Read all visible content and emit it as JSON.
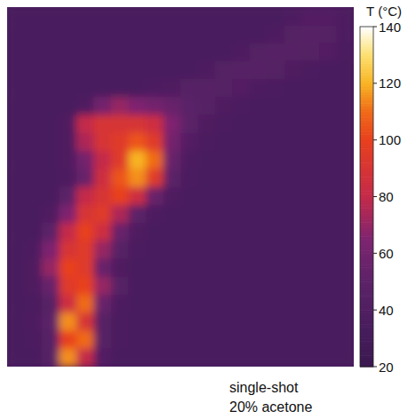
{
  "chart_data": {
    "type": "heatmap",
    "tick_labels": false,
    "colorbar_label": "T (°C)",
    "colorbar_range": [
      20,
      140
    ],
    "colorbar_ticks": [
      20,
      40,
      60,
      80,
      100,
      120,
      140
    ],
    "annotations": [
      "single-shot",
      "20% acetone"
    ],
    "cells": [
      [
        35,
        35,
        35,
        35,
        35,
        35,
        35,
        35,
        35,
        35,
        35,
        35,
        35,
        35,
        35,
        35,
        38,
        42,
        42,
        38
      ],
      [
        35,
        35,
        35,
        35,
        35,
        35,
        35,
        35,
        35,
        35,
        35,
        35,
        35,
        35,
        35,
        38,
        44,
        45,
        44,
        38
      ],
      [
        35,
        35,
        35,
        35,
        35,
        35,
        35,
        35,
        35,
        35,
        35,
        35,
        35,
        38,
        44,
        46,
        45,
        44,
        42,
        36
      ],
      [
        35,
        35,
        35,
        35,
        35,
        35,
        35,
        35,
        35,
        35,
        35,
        38,
        44,
        45,
        45,
        43,
        40,
        36,
        35,
        35
      ],
      [
        35,
        35,
        35,
        35,
        35,
        35,
        35,
        35,
        38,
        40,
        45,
        45,
        44,
        42,
        38,
        36,
        35,
        35,
        35,
        35
      ],
      [
        35,
        35,
        35,
        35,
        40,
        60,
        70,
        65,
        60,
        55,
        48,
        45,
        40,
        36,
        35,
        35,
        35,
        35,
        35,
        35
      ],
      [
        35,
        35,
        35,
        40,
        80,
        90,
        90,
        90,
        85,
        65,
        50,
        40,
        36,
        35,
        35,
        35,
        35,
        35,
        35,
        35
      ],
      [
        35,
        35,
        35,
        40,
        75,
        90,
        95,
        105,
        95,
        60,
        42,
        36,
        35,
        35,
        35,
        35,
        35,
        35,
        35,
        35
      ],
      [
        35,
        35,
        35,
        40,
        60,
        80,
        95,
        120,
        110,
        55,
        38,
        35,
        35,
        35,
        35,
        35,
        35,
        35,
        35,
        35
      ],
      [
        35,
        35,
        35,
        38,
        55,
        85,
        105,
        115,
        95,
        50,
        37,
        35,
        35,
        35,
        35,
        35,
        35,
        35,
        35,
        35
      ],
      [
        35,
        35,
        35,
        50,
        80,
        90,
        100,
        85,
        55,
        40,
        35,
        35,
        35,
        35,
        35,
        35,
        35,
        35,
        35,
        35
      ],
      [
        35,
        35,
        40,
        65,
        90,
        95,
        75,
        50,
        38,
        35,
        35,
        35,
        35,
        35,
        35,
        35,
        35,
        35,
        35,
        35
      ],
      [
        35,
        35,
        50,
        80,
        100,
        85,
        55,
        40,
        35,
        35,
        35,
        35,
        35,
        35,
        35,
        35,
        35,
        35,
        35,
        35
      ],
      [
        35,
        38,
        65,
        90,
        95,
        70,
        45,
        36,
        35,
        35,
        35,
        35,
        35,
        35,
        35,
        35,
        35,
        35,
        35,
        35
      ],
      [
        35,
        40,
        70,
        100,
        95,
        55,
        40,
        35,
        35,
        35,
        35,
        35,
        35,
        35,
        35,
        35,
        35,
        35,
        35,
        35
      ],
      [
        35,
        40,
        55,
        95,
        100,
        70,
        45,
        35,
        35,
        35,
        35,
        35,
        35,
        35,
        35,
        35,
        35,
        35,
        35,
        35
      ],
      [
        35,
        36,
        45,
        85,
        110,
        55,
        38,
        35,
        35,
        35,
        35,
        35,
        35,
        35,
        35,
        35,
        35,
        35,
        35,
        35
      ],
      [
        35,
        38,
        50,
        115,
        90,
        45,
        36,
        35,
        35,
        35,
        35,
        35,
        35,
        35,
        35,
        35,
        35,
        35,
        35,
        35
      ],
      [
        35,
        36,
        45,
        100,
        110,
        45,
        36,
        35,
        35,
        35,
        35,
        35,
        35,
        35,
        35,
        35,
        35,
        35,
        35,
        35
      ],
      [
        35,
        35,
        45,
        115,
        80,
        42,
        35,
        35,
        35,
        35,
        35,
        35,
        35,
        35,
        35,
        35,
        35,
        35,
        35,
        35
      ]
    ]
  }
}
